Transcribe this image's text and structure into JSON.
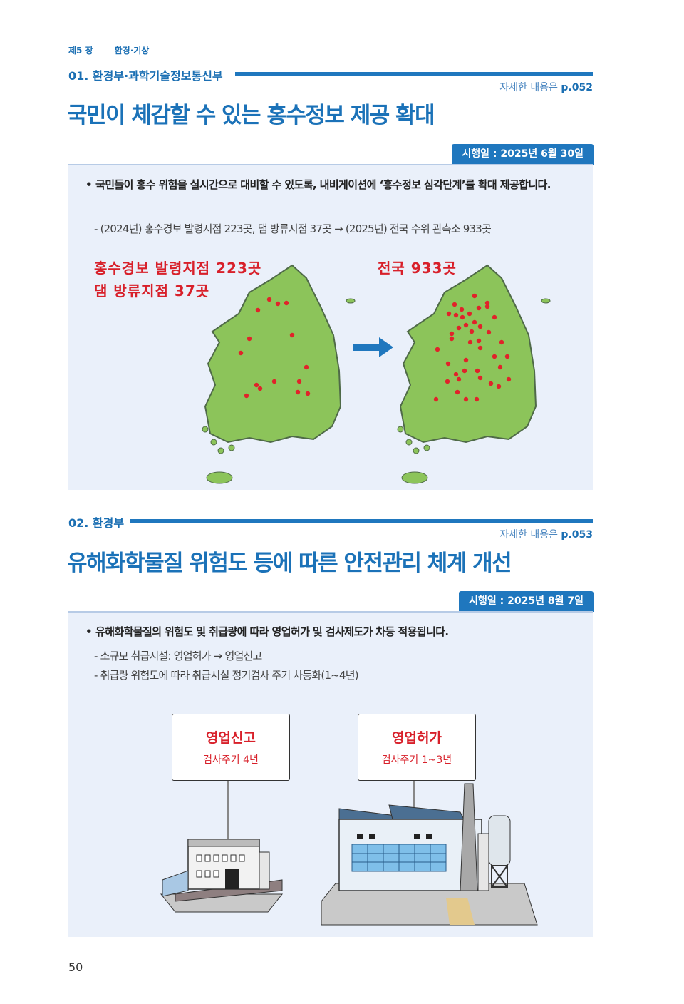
{
  "header": {
    "chapter": "제5 장",
    "chapter_title": "환경·기상"
  },
  "sections": [
    {
      "heading": "01. 환경부·과학기술정보통신부",
      "ref_prefix": "자세한 내용은",
      "ref_page": "p.052",
      "title": "국민이 체감할 수 있는 홍수정보 제공 확대",
      "badge": "시행일 : 2025년 6월 30일",
      "bullet": "국민들이 홍수 위험을 실시간으로 대비할 수 있도록, 내비게이션에 ‘홍수정보 심각단계’를 확대 제공합니다.",
      "subs": [
        "- (2024년) 홍수경보 발령지점 223곳, 댐 방류지점 37곳 → (2025년) 전국 수위 관측소 933곳"
      ],
      "illustration": {
        "before_label_1": "홍수경보 발령지점 223곳",
        "before_label_2": "댐 방류지점 37곳",
        "after_label": "전국 933곳",
        "map_color": "#8cc45a",
        "dot_color": "#e0232a",
        "arrow_color": "#1f77be"
      }
    },
    {
      "heading": "02. 환경부",
      "ref_prefix": "자세한 내용은",
      "ref_page": "p.053",
      "title": "유해화학물질 위험도 등에 따른 안전관리 체계 개선",
      "badge": "시행일 : 2025년 8월 7일",
      "bullet": "유해화학물질의 위험도 및 취급량에 따라 영업허가 및 검사제도가 차등 적용됩니다.",
      "subs": [
        "- 소규모 취급시설: 영업허가 → 영업신고",
        "- 취급량 위험도에 따라 취급시설 정기검사 주기 차등화(1~4년)"
      ],
      "illustration": {
        "small_sign_title": "영업신고",
        "small_sign_sub": "검사주기 4년",
        "large_sign_title": "영업허가",
        "large_sign_sub": "검사주기 1~3년"
      }
    }
  ],
  "page_number": "50",
  "colors": {
    "accent": "#1f77be",
    "panel": "#eaf0fa",
    "handwriting": "#d8202a"
  }
}
